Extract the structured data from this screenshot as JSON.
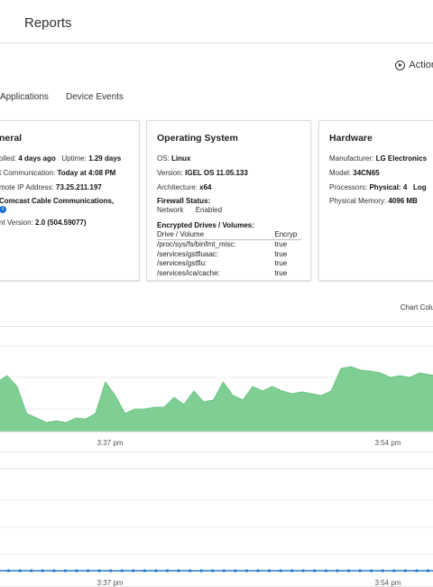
{
  "header": {
    "title": "Reports"
  },
  "actions": {
    "label": "Action"
  },
  "tabs": [
    "Applications",
    "Device Events"
  ],
  "general": {
    "title": "neral",
    "installed_label": "olled:",
    "installed_value": "4 days ago",
    "uptime_label": "Uptime:",
    "uptime_value": "1.29 days",
    "comm_label": "t Communication:",
    "comm_value": "Today at 4:08 PM",
    "ip_label": "mote IP Address:",
    "ip_value": "73.25.211.197",
    "isp_value": "Comcast Cable Communications,",
    "agent_label": "nt Version:",
    "agent_value": "2.0 (504.59077)"
  },
  "os": {
    "title": "Operating System",
    "os_label": "OS:",
    "os_value": "Linux",
    "version_label": "Version:",
    "version_value": "IGEL OS 11.05.133",
    "arch_label": "Architecture:",
    "arch_value": "x64",
    "firewall_title": "Firewall Status:",
    "firewall_network": "Network",
    "firewall_enabled": "Enabled",
    "drives_title": "Encrypted Drives / Volumes:",
    "drives_header": [
      "Drive / Volume",
      "Encryp"
    ],
    "drives": [
      {
        "path": "/proc/sys/fs/binfmt_misc:",
        "enc": "true"
      },
      {
        "path": "/services/gstfluaac:",
        "enc": "true"
      },
      {
        "path": "/services/gstflu:",
        "enc": "true"
      },
      {
        "path": "/services/ica/cache:",
        "enc": "true"
      }
    ]
  },
  "hardware": {
    "title": "Hardware",
    "mfr_label": "Manufacturer:",
    "mfr_value": "LG Electronics",
    "model_label": "Model:",
    "model_value": "34CN65",
    "proc_label": "Processors:",
    "proc_value": "Physical: 4",
    "proc_logical": "Log",
    "mem_label": "Physical Memory:",
    "mem_value": "4096 MB"
  },
  "chart_columns": {
    "label": "Chart Colu"
  },
  "chart_data": [
    {
      "type": "area",
      "x_ticks": [
        "3:37 pm",
        "3:54 pm"
      ],
      "color": "#7fcf94",
      "values": [
        0.55,
        0.62,
        0.5,
        0.2,
        0.15,
        0.1,
        0.12,
        0.1,
        0.15,
        0.14,
        0.2,
        0.55,
        0.4,
        0.2,
        0.25,
        0.25,
        0.27,
        0.27,
        0.38,
        0.3,
        0.45,
        0.33,
        0.35,
        0.55,
        0.4,
        0.35,
        0.5,
        0.45,
        0.5,
        0.45,
        0.42,
        0.44,
        0.42,
        0.4,
        0.45,
        0.7,
        0.72,
        0.68,
        0.67,
        0.65,
        0.6,
        0.62,
        0.6,
        0.65,
        0.63,
        0.62
      ]
    },
    {
      "type": "line",
      "x_ticks": [
        "3:37 pm",
        "3:54 pm"
      ],
      "color": "#2a7ac9",
      "points": 40,
      "values": [
        0,
        0,
        0,
        0,
        0,
        0,
        0,
        0,
        0,
        0,
        0,
        0,
        0,
        0,
        0,
        0,
        0,
        0,
        0,
        0,
        0,
        0,
        0,
        0,
        0,
        0,
        0,
        0,
        0,
        0,
        0,
        0,
        0,
        0,
        0,
        0,
        0,
        0,
        0,
        0
      ]
    }
  ]
}
